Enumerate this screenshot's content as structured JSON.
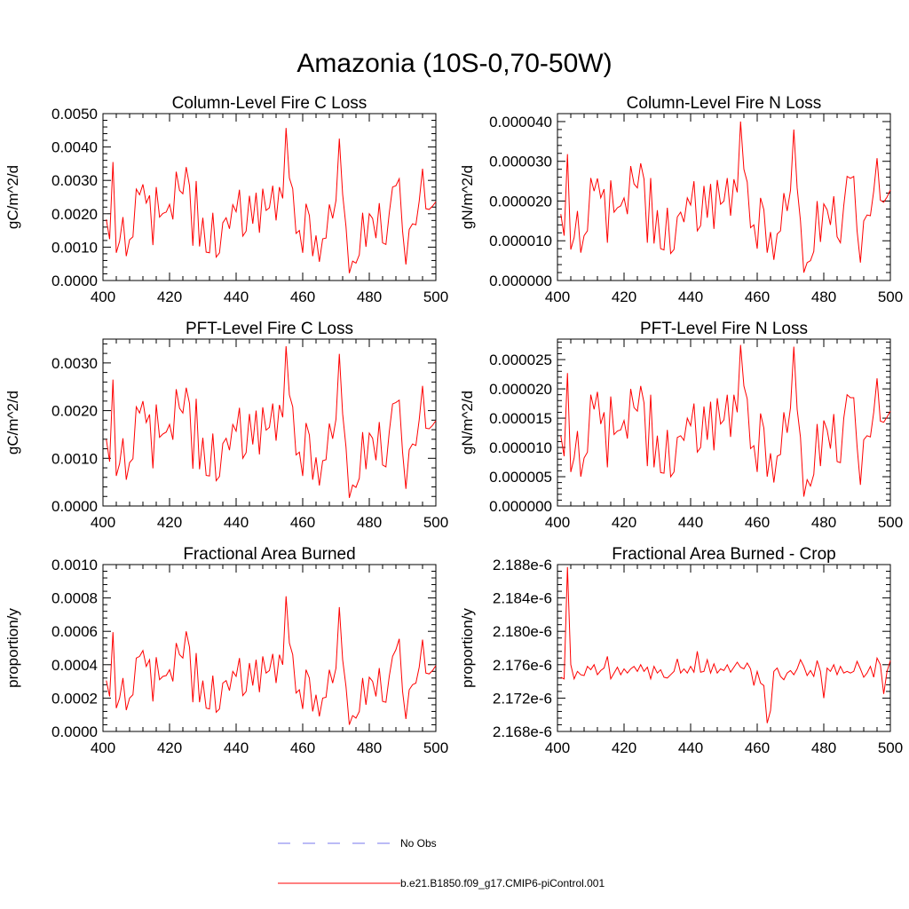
{
  "figure_title": "Amazonia (10S-0,70-50W)",
  "colors": {
    "series": "#ff0000",
    "no_obs": "#7777ee",
    "axis": "#000000"
  },
  "legend": {
    "no_obs_label": "No Obs",
    "series_label": "b.e21.B1850.f09_g17.CMIP6-piControl.001"
  },
  "chart_data": [
    {
      "type": "line",
      "title": "Column-Level Fire C Loss",
      "ylabel": "gC/m^2/d",
      "xlim": [
        400,
        500
      ],
      "ylim": [
        0,
        0.005
      ],
      "x_ticks": [
        "400",
        "420",
        "440",
        "460",
        "480",
        "500"
      ],
      "y_ticks": [
        "0.0000",
        "0.0010",
        "0.0020",
        "0.0030",
        "0.0040",
        "0.0050"
      ],
      "x_start": 401,
      "values": [
        0.00183,
        0.00124,
        0.00355,
        0.00083,
        0.00118,
        0.0019,
        0.00073,
        0.00122,
        0.00131,
        0.00274,
        0.00257,
        0.00288,
        0.00232,
        0.00255,
        0.00106,
        0.0028,
        0.0019,
        0.00201,
        0.00205,
        0.00228,
        0.00183,
        0.00326,
        0.0027,
        0.0026,
        0.0034,
        0.00284,
        0.00104,
        0.00298,
        0.00102,
        0.00188,
        0.00085,
        0.00083,
        0.00203,
        0.0007,
        0.00083,
        0.00173,
        0.00188,
        0.00155,
        0.00227,
        0.00206,
        0.00272,
        0.00133,
        0.00148,
        0.00254,
        0.0017,
        0.00263,
        0.00143,
        0.00275,
        0.0021,
        0.00218,
        0.00284,
        0.0018,
        0.0028,
        0.00246,
        0.00457,
        0.00307,
        0.00275,
        0.00141,
        0.0015,
        0.00083,
        0.0023,
        0.00195,
        0.00073,
        0.00135,
        0.00056,
        0.00125,
        0.00127,
        0.00228,
        0.00186,
        0.0024,
        0.00425,
        0.00258,
        0.00162,
        0.00022,
        0.00058,
        0.00052,
        0.00077,
        0.00203,
        0.00101,
        0.002,
        0.00186,
        0.00127,
        0.00232,
        0.00113,
        0.00108,
        0.00202,
        0.0028,
        0.00284,
        0.00305,
        0.00148,
        0.00048,
        0.00153,
        0.0017,
        0.00167,
        0.00238,
        0.00335,
        0.00215,
        0.00213,
        0.00223,
        0.00236
      ]
    },
    {
      "type": "line",
      "title": "Column-Level Fire N Loss",
      "ylabel": "gN/m^2/d",
      "xlim": [
        400,
        500
      ],
      "ylim": [
        0,
        4.2e-05
      ],
      "x_ticks": [
        "400",
        "420",
        "440",
        "460",
        "480",
        "500"
      ],
      "y_ticks": [
        "0.000000",
        "0.000010",
        "0.000020",
        "0.000030",
        "0.000040"
      ],
      "x_start": 401,
      "values": [
        1.67e-05,
        1.13e-05,
        3.18e-05,
        7.8e-06,
        1.08e-05,
        1.75e-05,
        7e-06,
        1.13e-05,
        1.25e-05,
        2.58e-05,
        2.25e-05,
        2.57e-05,
        2.08e-05,
        2.3e-05,
        9.5e-06,
        2.52e-05,
        1.72e-05,
        1.83e-05,
        1.88e-05,
        2.08e-05,
        1.67e-05,
        2.88e-05,
        2.43e-05,
        2.33e-05,
        2.95e-05,
        2.55e-05,
        9.5e-06,
        2.58e-05,
        9.3e-06,
        1.77e-05,
        8e-06,
        7.7e-06,
        1.83e-05,
        6.8e-06,
        7.8e-06,
        1.6e-05,
        1.72e-05,
        1.47e-05,
        2.08e-05,
        1.9e-05,
        2.5e-05,
        1.25e-05,
        1.38e-05,
        2.38e-05,
        1.58e-05,
        2.43e-05,
        1.3e-05,
        2.53e-05,
        1.92e-05,
        2e-05,
        2.58e-05,
        1.63e-05,
        2.55e-05,
        2.22e-05,
        4e-05,
        2.8e-05,
        2.48e-05,
        1.33e-05,
        1.4e-05,
        8e-06,
        2.08e-05,
        1.78e-05,
        7e-06,
        1.22e-05,
        5.2e-06,
        1.17e-05,
        1.25e-05,
        2.2e-05,
        1.75e-05,
        2.27e-05,
        3.8e-05,
        2.33e-05,
        1.5e-05,
        2e-06,
        4.5e-06,
        5e-06,
        7.3e-06,
        2e-05,
        9.7e-06,
        1.93e-05,
        1.78e-05,
        1.4e-05,
        2.12e-05,
        1.1e-05,
        9.5e-06,
        1.88e-05,
        2.62e-05,
        2.57e-05,
        2.62e-05,
        1.25e-05,
        4.5e-06,
        1.5e-05,
        1.65e-05,
        1.63e-05,
        2.25e-05,
        3.08e-05,
        2.02e-05,
        1.97e-05,
        2.1e-05,
        2.28e-05
      ]
    },
    {
      "type": "line",
      "title": "PFT-Level Fire C Loss",
      "ylabel": "gC/m^2/d",
      "xlim": [
        400,
        500
      ],
      "ylim": [
        0,
        0.0035
      ],
      "x_ticks": [
        "400",
        "420",
        "440",
        "460",
        "480",
        "500"
      ],
      "y_ticks": [
        "0.0000",
        "0.0010",
        "0.0020",
        "0.0030"
      ],
      "x_start": 401,
      "values": [
        0.0014,
        0.00093,
        0.00265,
        0.00063,
        0.00089,
        0.00142,
        0.00055,
        0.00091,
        0.00099,
        0.00208,
        0.00195,
        0.0022,
        0.00175,
        0.00192,
        0.00079,
        0.00213,
        0.00144,
        0.00151,
        0.00155,
        0.00171,
        0.00139,
        0.00245,
        0.00205,
        0.00195,
        0.00248,
        0.00215,
        0.00078,
        0.00225,
        0.00077,
        0.00143,
        0.00064,
        0.00063,
        0.00152,
        0.00053,
        0.00062,
        0.00131,
        0.00142,
        0.00117,
        0.00171,
        0.00157,
        0.00206,
        0.001,
        0.00112,
        0.00193,
        0.00129,
        0.002,
        0.00108,
        0.00207,
        0.00159,
        0.00165,
        0.00215,
        0.00137,
        0.00212,
        0.00186,
        0.00335,
        0.00233,
        0.00208,
        0.00107,
        0.00113,
        0.00063,
        0.00174,
        0.00149,
        0.00055,
        0.00102,
        0.00043,
        0.00095,
        0.00097,
        0.00173,
        0.00141,
        0.00182,
        0.00319,
        0.00193,
        0.00124,
        0.00017,
        0.00044,
        0.00039,
        0.00058,
        0.00155,
        0.00077,
        0.00153,
        0.00142,
        0.00096,
        0.00176,
        0.00086,
        0.00082,
        0.00155,
        0.00214,
        0.00217,
        0.00222,
        0.00113,
        0.00036,
        0.00118,
        0.0013,
        0.00127,
        0.00181,
        0.00252,
        0.00163,
        0.00162,
        0.00169,
        0.00179
      ]
    },
    {
      "type": "line",
      "title": "PFT-Level Fire N Loss",
      "ylabel": "gN/m^2/d",
      "xlim": [
        400,
        500
      ],
      "ylim": [
        0,
        2.85e-05
      ],
      "x_ticks": [
        "400",
        "420",
        "440",
        "460",
        "480",
        "500"
      ],
      "y_ticks": [
        "0.000000",
        "0.000005",
        "0.000010",
        "0.000015",
        "0.000020",
        "0.000025"
      ],
      "x_start": 401,
      "values": [
        1.2e-05,
        8.5e-06,
        2.27e-05,
        5.8e-06,
        8.2e-06,
        1.28e-05,
        5e-06,
        8.2e-06,
        9.2e-06,
        1.9e-05,
        1.65e-05,
        1.95e-05,
        1.4e-05,
        1.6e-05,
        6.6e-06,
        1.87e-05,
        1.22e-05,
        1.28e-05,
        1.3e-05,
        1.46e-05,
        1.15e-05,
        2e-05,
        1.68e-05,
        1.62e-05,
        2.05e-05,
        1.76e-05,
        6.8e-06,
        1.9e-05,
        6.6e-06,
        1.2e-05,
        5.7e-06,
        5.6e-06,
        1.3e-05,
        5e-06,
        5.8e-06,
        1.17e-05,
        1.2e-05,
        1.12e-05,
        1.5e-05,
        1.37e-05,
        1.75e-05,
        9.2e-06,
        1e-05,
        1.7e-05,
        1.13e-05,
        1.78e-05,
        9.5e-06,
        1.84e-05,
        1.4e-05,
        1.47e-05,
        1.9e-05,
        1.18e-05,
        1.9e-05,
        1.6e-05,
        2.75e-05,
        2.05e-05,
        1.83e-05,
        9.8e-06,
        1.03e-05,
        5.8e-06,
        1.58e-05,
        1.33e-05,
        5e-06,
        9e-06,
        4e-06,
        8.5e-06,
        8.8e-06,
        1.6e-05,
        1.25e-05,
        1.68e-05,
        2.72e-05,
        1.65e-05,
        1.17e-05,
        1.6e-06,
        4.5e-06,
        3.4e-06,
        5.4e-06,
        1.4e-05,
        6.8e-06,
        1.46e-05,
        1.3e-05,
        9.8e-06,
        1.57e-05,
        7.6e-06,
        7.4e-06,
        1.5e-05,
        1.9e-05,
        1.85e-05,
        1.85e-05,
        1.02e-05,
        3.6e-06,
        1.13e-05,
        1.2e-05,
        1.18e-05,
        1.6e-05,
        2.18e-05,
        1.45e-05,
        1.43e-05,
        1.52e-05,
        1.62e-05
      ]
    },
    {
      "type": "line",
      "title": "Fractional Area Burned",
      "ylabel": "proportion/y",
      "xlim": [
        400,
        500
      ],
      "ylim": [
        0,
        0.001
      ],
      "x_ticks": [
        "400",
        "420",
        "440",
        "460",
        "480",
        "500"
      ],
      "y_ticks": [
        "0.0000",
        "0.0002",
        "0.0004",
        "0.0006",
        "0.0008",
        "0.0010"
      ],
      "x_start": 401,
      "values": [
        0.000305,
        0.00021,
        0.000595,
        0.00014,
        0.0002,
        0.00032,
        0.000128,
        0.0002,
        0.00022,
        0.00044,
        0.00045,
        0.000485,
        0.00039,
        0.00043,
        0.00018,
        0.000445,
        0.00031,
        0.00033,
        0.000335,
        0.00037,
        0.0003,
        0.00053,
        0.00046,
        0.00044,
        0.0006,
        0.000505,
        0.000175,
        0.00047,
        0.000175,
        0.000305,
        0.00014,
        0.000135,
        0.000335,
        0.000115,
        0.000135,
        0.00029,
        0.000305,
        0.000245,
        0.00036,
        0.00033,
        0.00044,
        0.000215,
        0.00024,
        0.00041,
        0.000275,
        0.00043,
        0.000235,
        0.00045,
        0.00035,
        0.000365,
        0.000465,
        0.00029,
        0.00046,
        0.0004,
        0.00081,
        0.00053,
        0.00046,
        0.00023,
        0.00025,
        0.000135,
        0.00037,
        0.00032,
        0.00012,
        0.00022,
        9e-05,
        0.0002,
        0.000205,
        0.00037,
        0.00029,
        0.00038,
        0.000745,
        0.00043,
        0.00027,
        4e-05,
        9.5e-05,
        8e-05,
        0.00012,
        0.00032,
        0.00016,
        0.000325,
        0.0003,
        0.00021,
        0.00038,
        0.00018,
        0.000175,
        0.00033,
        0.00045,
        0.00049,
        0.000555,
        0.00024,
        7.5e-05,
        0.00025,
        0.00028,
        0.00029,
        0.000385,
        0.00055,
        0.00035,
        0.000345,
        0.000365,
        0.000395
      ]
    },
    {
      "type": "line",
      "title": "Fractional Area Burned - Crop",
      "ylabel": "proportion/y",
      "xlim": [
        400,
        500
      ],
      "ylim": [
        2.168e-06,
        2.188e-06
      ],
      "x_ticks": [
        "400",
        "420",
        "440",
        "460",
        "480",
        "500"
      ],
      "y_ticks": [
        "2.168e-6",
        "2.172e-6",
        "2.176e-6",
        "2.180e-6",
        "2.184e-6",
        "2.188e-6"
      ],
      "x_start": 401,
      "values": [
        2.1745e-06,
        2.1743e-06,
        2.1877e-06,
        2.176e-06,
        2.1743e-06,
        2.1752e-06,
        2.1748e-06,
        2.1747e-06,
        2.1758e-06,
        2.1754e-06,
        2.176e-06,
        2.1748e-06,
        2.1753e-06,
        2.1756e-06,
        2.177e-06,
        2.1743e-06,
        2.175e-06,
        2.1757e-06,
        2.1748e-06,
        2.1755e-06,
        2.175e-06,
        2.1755e-06,
        2.1758e-06,
        2.1752e-06,
        2.176e-06,
        2.1752e-06,
        2.1757e-06,
        2.1743e-06,
        2.1758e-06,
        2.175e-06,
        2.1754e-06,
        2.1745e-06,
        2.1744e-06,
        2.1748e-06,
        2.1752e-06,
        2.1767e-06,
        2.175e-06,
        2.1755e-06,
        2.175e-06,
        2.1758e-06,
        2.1751e-06,
        2.1776e-06,
        2.1751e-06,
        2.1752e-06,
        2.1766e-06,
        2.175e-06,
        2.1761e-06,
        2.175e-06,
        2.1755e-06,
        2.1753e-06,
        2.176e-06,
        2.1751e-06,
        2.1757e-06,
        2.1763e-06,
        2.1757e-06,
        2.1755e-06,
        2.1762e-06,
        2.1755e-06,
        2.1735e-06,
        2.1752e-06,
        2.1738e-06,
        2.1735e-06,
        2.169e-06,
        2.1705e-06,
        2.1752e-06,
        2.1756e-06,
        2.1746e-06,
        2.1742e-06,
        2.175e-06,
        2.1753e-06,
        2.1748e-06,
        2.1755e-06,
        2.1766e-06,
        2.1758e-06,
        2.1747e-06,
        2.1753e-06,
        2.1746e-06,
        2.1765e-06,
        2.1752e-06,
        2.172e-06,
        2.1756e-06,
        2.1752e-06,
        2.176e-06,
        2.1748e-06,
        2.1758e-06,
        2.175e-06,
        2.1752e-06,
        2.175e-06,
        2.1752e-06,
        2.1764e-06,
        2.1755e-06,
        2.1745e-06,
        2.175e-06,
        2.1758e-06,
        2.1745e-06,
        2.1768e-06,
        2.176e-06,
        2.1725e-06,
        2.1752e-06,
        2.1765e-06
      ]
    }
  ]
}
